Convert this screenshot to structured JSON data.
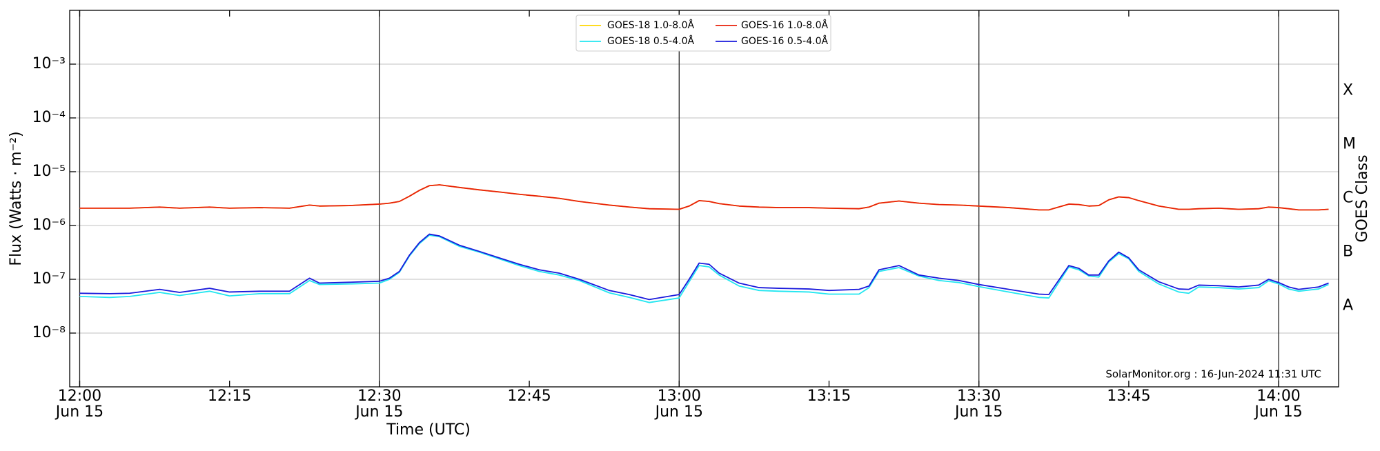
{
  "chart_data": {
    "type": "line",
    "xlabel": "Time (UTC)",
    "ylabel": "Flux (Watts · m⁻²)",
    "y2label": "GOES Class",
    "annotation": "SolarMonitor.org : 16-Jun-2024 11:31 UTC",
    "log_y": true,
    "grid": true,
    "legend": "upper center",
    "xlim": [
      "11:59",
      "14:06"
    ],
    "ylim": [
      1e-09,
      0.01
    ],
    "yticks": [
      {
        "value": 1e-08,
        "label": "10⁻⁸"
      },
      {
        "value": 1e-07,
        "label": "10⁻⁷"
      },
      {
        "value": 1e-06,
        "label": "10⁻⁶"
      },
      {
        "value": 1e-05,
        "label": "10⁻⁵"
      },
      {
        "value": 0.0001,
        "label": "10⁻⁴"
      },
      {
        "value": 0.001,
        "label": "10⁻³"
      }
    ],
    "y2lim": [
      1e-09,
      0.01
    ],
    "y2ticks": [
      {
        "value": 3.2e-08,
        "label": "A"
      },
      {
        "value": 3.2e-07,
        "label": "B"
      },
      {
        "value": 3.2e-06,
        "label": "C"
      },
      {
        "value": 3.2e-05,
        "label": "M"
      },
      {
        "value": 0.00032,
        "label": "X"
      }
    ],
    "xticks": [
      {
        "value": "12:00",
        "label": "12:00",
        "sublabel": "Jun 15"
      },
      {
        "value": "12:15",
        "label": "12:15"
      },
      {
        "value": "12:30",
        "label": "12:30",
        "sublabel": "Jun 15"
      },
      {
        "value": "12:45",
        "label": "12:45"
      },
      {
        "value": "13:00",
        "label": "13:00",
        "sublabel": "Jun 15"
      },
      {
        "value": "13:15",
        "label": "13:15"
      },
      {
        "value": "13:30",
        "label": "13:30",
        "sublabel": "Jun 15"
      },
      {
        "value": "13:45",
        "label": "13:45"
      },
      {
        "value": "14:00",
        "label": "14:00",
        "sublabel": "Jun 15"
      }
    ],
    "vlines": [
      "12:00",
      "12:30",
      "13:00",
      "13:30",
      "14:00"
    ],
    "x": [
      "12:00",
      "12:03",
      "12:05",
      "12:08",
      "12:10",
      "12:13",
      "12:15",
      "12:18",
      "12:21",
      "12:23",
      "12:24",
      "12:27",
      "12:30",
      "12:31",
      "12:32",
      "12:33",
      "12:34",
      "12:35",
      "12:36",
      "12:38",
      "12:40",
      "12:42",
      "12:44",
      "12:46",
      "12:48",
      "12:50",
      "12:53",
      "12:55",
      "12:57",
      "13:00",
      "13:01",
      "13:02",
      "13:03",
      "13:04",
      "13:06",
      "13:08",
      "13:10",
      "13:13",
      "13:15",
      "13:18",
      "13:19",
      "13:20",
      "13:22",
      "13:24",
      "13:26",
      "13:28",
      "13:30",
      "13:33",
      "13:36",
      "13:37",
      "13:39",
      "13:40",
      "13:41",
      "13:42",
      "13:43",
      "13:44",
      "13:45",
      "13:46",
      "13:48",
      "13:50",
      "13:51",
      "13:52",
      "13:54",
      "13:56",
      "13:58",
      "13:59",
      "14:00",
      "14:01",
      "14:02",
      "14:04",
      "14:05"
    ],
    "series": [
      {
        "name": "GOES-18 1.0-8.0Å",
        "color": "#ffd700",
        "values": [
          2.1e-06,
          2.1e-06,
          2.1e-06,
          2.2e-06,
          2.1e-06,
          2.2e-06,
          2.1e-06,
          2.15e-06,
          2.1e-06,
          2.4e-06,
          2.3e-06,
          2.35e-06,
          2.5e-06,
          2.6e-06,
          2.8e-06,
          3.5e-06,
          4.5e-06,
          5.5e-06,
          5.7e-06,
          5.1e-06,
          4.6e-06,
          4.2e-06,
          3.8e-06,
          3.5e-06,
          3.2e-06,
          2.8e-06,
          2.4e-06,
          2.2e-06,
          2.05e-06,
          2e-06,
          2.3e-06,
          2.9e-06,
          2.8e-06,
          2.55e-06,
          2.3e-06,
          2.2e-06,
          2.15e-06,
          2.15e-06,
          2.1e-06,
          2.05e-06,
          2.2e-06,
          2.6e-06,
          2.85e-06,
          2.6e-06,
          2.45e-06,
          2.4e-06,
          2.3e-06,
          2.15e-06,
          1.95e-06,
          1.95e-06,
          2.5e-06,
          2.45e-06,
          2.3e-06,
          2.35e-06,
          3e-06,
          3.4e-06,
          3.3e-06,
          2.9e-06,
          2.3e-06,
          2e-06,
          2e-06,
          2.05e-06,
          2.1e-06,
          2e-06,
          2.05e-06,
          2.2e-06,
          2.15e-06,
          2.05e-06,
          1.95e-06,
          1.95e-06,
          2e-06
        ]
      },
      {
        "name": "GOES-16 1.0-8.0Å",
        "color": "#e8200a",
        "values": [
          2.1e-06,
          2.1e-06,
          2.1e-06,
          2.2e-06,
          2.1e-06,
          2.2e-06,
          2.1e-06,
          2.15e-06,
          2.1e-06,
          2.4e-06,
          2.3e-06,
          2.35e-06,
          2.5e-06,
          2.6e-06,
          2.8e-06,
          3.5e-06,
          4.5e-06,
          5.5e-06,
          5.7e-06,
          5.1e-06,
          4.6e-06,
          4.2e-06,
          3.8e-06,
          3.5e-06,
          3.2e-06,
          2.8e-06,
          2.4e-06,
          2.2e-06,
          2.05e-06,
          2e-06,
          2.3e-06,
          2.9e-06,
          2.8e-06,
          2.55e-06,
          2.3e-06,
          2.2e-06,
          2.15e-06,
          2.15e-06,
          2.1e-06,
          2.05e-06,
          2.2e-06,
          2.6e-06,
          2.85e-06,
          2.6e-06,
          2.45e-06,
          2.4e-06,
          2.3e-06,
          2.15e-06,
          1.95e-06,
          1.95e-06,
          2.5e-06,
          2.45e-06,
          2.3e-06,
          2.35e-06,
          3e-06,
          3.4e-06,
          3.3e-06,
          2.9e-06,
          2.3e-06,
          2e-06,
          2e-06,
          2.05e-06,
          2.1e-06,
          2e-06,
          2.05e-06,
          2.2e-06,
          2.15e-06,
          2.05e-06,
          1.95e-06,
          1.95e-06,
          2e-06
        ]
      },
      {
        "name": "GOES-18 0.5-4.0Å",
        "color": "#22e6f0",
        "values": [
          4.8e-08,
          4.6e-08,
          4.8e-08,
          5.7e-08,
          5e-08,
          6e-08,
          4.9e-08,
          5.4e-08,
          5.4e-08,
          9.5e-08,
          8e-08,
          8.2e-08,
          8.5e-08,
          1e-07,
          1.35e-07,
          2.7e-07,
          4.6e-07,
          6.6e-07,
          6.2e-07,
          4.1e-07,
          3.2e-07,
          2.4e-07,
          1.8e-07,
          1.4e-07,
          1.2e-07,
          9.5e-08,
          5.6e-08,
          4.6e-08,
          3.7e-08,
          4.5e-08,
          9e-08,
          1.8e-07,
          1.7e-07,
          1.2e-07,
          7.5e-08,
          6.2e-08,
          6e-08,
          5.8e-08,
          5.3e-08,
          5.3e-08,
          7e-08,
          1.4e-07,
          1.65e-07,
          1.15e-07,
          9.5e-08,
          8.7e-08,
          7.3e-08,
          5.8e-08,
          4.6e-08,
          4.5e-08,
          1.7e-07,
          1.5e-07,
          1.15e-07,
          1.1e-07,
          2.1e-07,
          3e-07,
          2.4e-07,
          1.4e-07,
          8.2e-08,
          5.8e-08,
          5.5e-08,
          7.2e-08,
          7e-08,
          6.6e-08,
          7e-08,
          9.4e-08,
          8.2e-08,
          6.6e-08,
          6e-08,
          6.6e-08,
          8e-08
        ]
      },
      {
        "name": "GOES-16 0.5-4.0Å",
        "color": "#1a1adc",
        "values": [
          5.5e-08,
          5.4e-08,
          5.5e-08,
          6.5e-08,
          5.7e-08,
          6.8e-08,
          5.8e-08,
          6e-08,
          6e-08,
          1.05e-07,
          8.5e-08,
          8.8e-08,
          9.2e-08,
          1.05e-07,
          1.4e-07,
          2.8e-07,
          4.8e-07,
          6.9e-07,
          6.4e-07,
          4.3e-07,
          3.3e-07,
          2.5e-07,
          1.9e-07,
          1.5e-07,
          1.3e-07,
          1e-07,
          6.2e-08,
          5.2e-08,
          4.2e-08,
          5.2e-08,
          1e-07,
          2e-07,
          1.9e-07,
          1.3e-07,
          8.5e-08,
          7e-08,
          6.8e-08,
          6.6e-08,
          6.2e-08,
          6.5e-08,
          7.5e-08,
          1.5e-07,
          1.8e-07,
          1.2e-07,
          1.05e-07,
          9.5e-08,
          8e-08,
          6.5e-08,
          5.3e-08,
          5.2e-08,
          1.8e-07,
          1.6e-07,
          1.2e-07,
          1.2e-07,
          2.2e-07,
          3.2e-07,
          2.5e-07,
          1.5e-07,
          9e-08,
          6.6e-08,
          6.5e-08,
          7.8e-08,
          7.6e-08,
          7.2e-08,
          7.8e-08,
          1e-07,
          8.7e-08,
          7.2e-08,
          6.5e-08,
          7.2e-08,
          8.5e-08
        ]
      }
    ]
  }
}
